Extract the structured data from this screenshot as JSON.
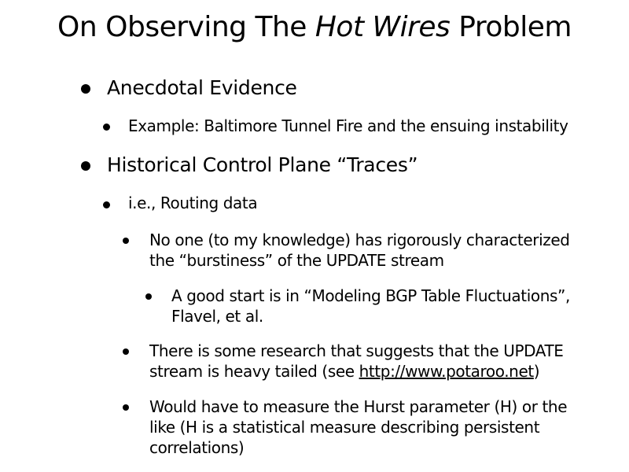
{
  "slide": {
    "title": {
      "prefix": "On Observing The ",
      "italic": "Hot Wires",
      "suffix": " Problem"
    },
    "items": [
      {
        "level": 1,
        "text": "Anecdotal Evidence"
      },
      {
        "level": 2,
        "text": "Example: Baltimore Tunnel Fire and the ensuing instability"
      },
      {
        "level": 1,
        "text": "Historical Control Plane “Traces”"
      },
      {
        "level": 2,
        "text": "i.e., Routing data"
      },
      {
        "level": 3,
        "line1": "No one (to my knowledge) has rigorously characterized",
        "line2": "the “burstiness” of the UPDATE stream"
      },
      {
        "level": 4,
        "line1": "A good start is in “Modeling BGP Table Fluctuations”,",
        "line2": "Flavel, et al."
      },
      {
        "level": 3,
        "line1": "There is some research that suggests that the UPDATE",
        "line2_prefix": "stream is heavy tailed (see ",
        "link_text": "http://www.potaroo.net",
        "line2_suffix": ")"
      },
      {
        "level": 3,
        "line1": "Would have to measure the Hurst parameter (H) or the",
        "line2": "like (H is a statistical measure describing persistent",
        "line3": "correlations)"
      }
    ]
  }
}
